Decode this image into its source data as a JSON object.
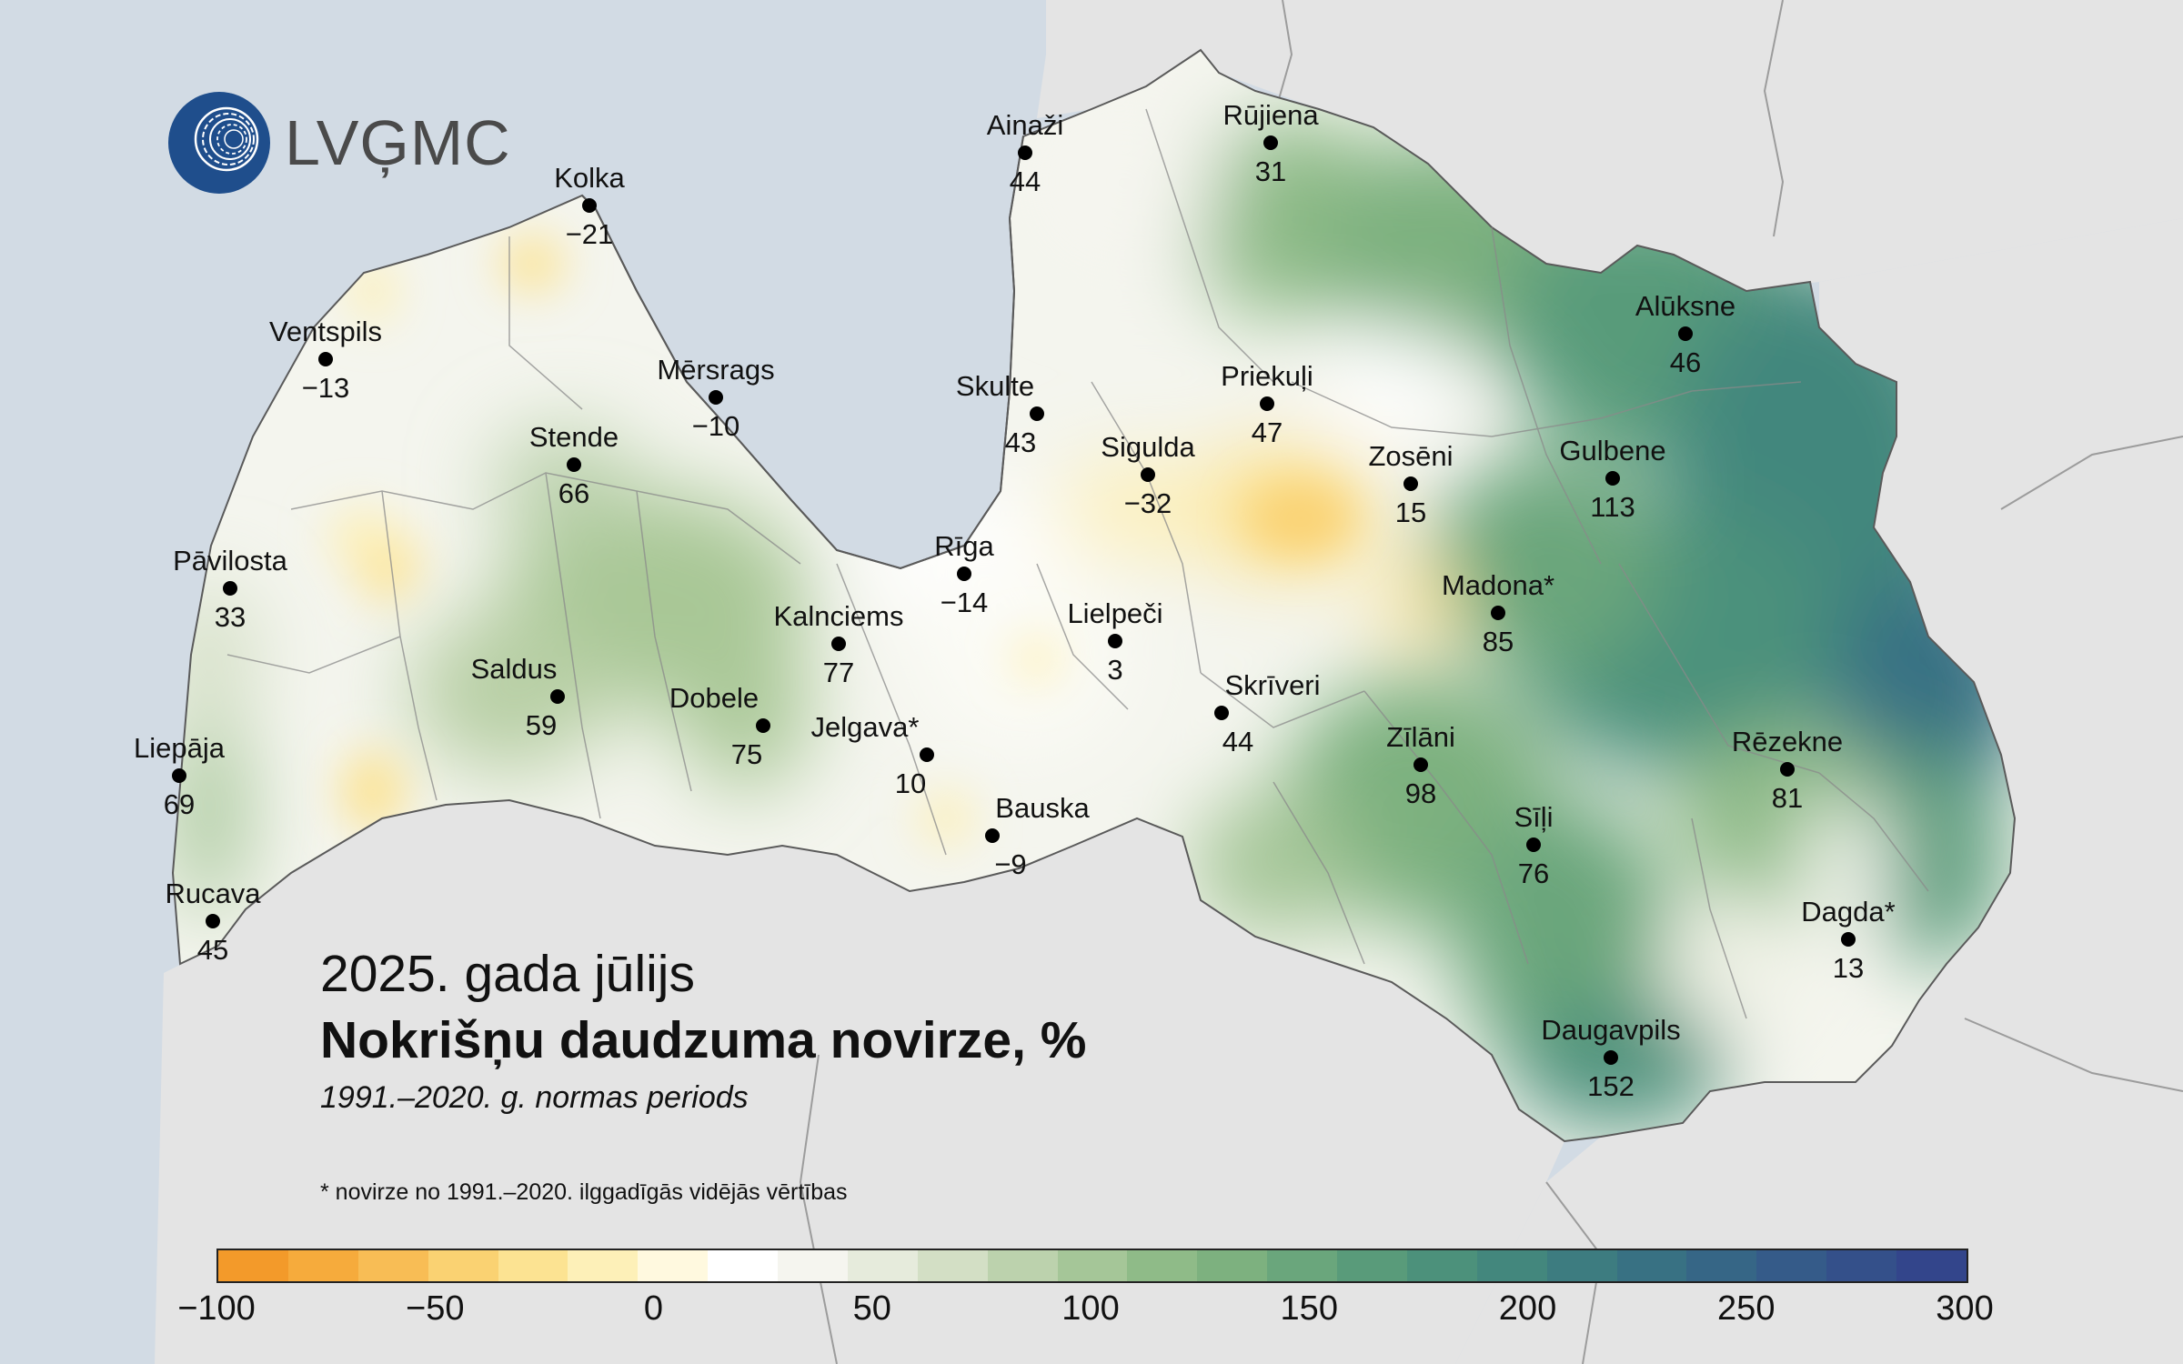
{
  "brand": {
    "logo_text": "LVĢMC"
  },
  "title": {
    "period": "2025. gada jūlijs",
    "main": "Nokrišņu daudzuma novirze, %",
    "norm": "1991.–2020. g. normas periods"
  },
  "footnote": "* novirze no 1991.–2020. ilggadīgās vidējās vērtības",
  "stations": [
    {
      "name": "Kolka",
      "value": "−21"
    },
    {
      "name": "Ventspils",
      "value": "−13"
    },
    {
      "name": "Mērsrags",
      "value": "−10"
    },
    {
      "name": "Ainaži",
      "value": "44"
    },
    {
      "name": "Rūjiena",
      "value": "31"
    },
    {
      "name": "Alūksne",
      "value": "46"
    },
    {
      "name": "Skulte",
      "value": "43"
    },
    {
      "name": "Priekuļi",
      "value": "47"
    },
    {
      "name": "Stende",
      "value": "66"
    },
    {
      "name": "Sigulda",
      "value": "−32"
    },
    {
      "name": "Zosēni",
      "value": "15"
    },
    {
      "name": "Gulbene",
      "value": "113"
    },
    {
      "name": "Pāvilosta",
      "value": "33"
    },
    {
      "name": "Rīga",
      "value": "−14"
    },
    {
      "name": "Madona*",
      "value": "85"
    },
    {
      "name": "Kalnciems",
      "value": "77"
    },
    {
      "name": "Lielpeči",
      "value": "3"
    },
    {
      "name": "Saldus",
      "value": "59"
    },
    {
      "name": "Skrīveri",
      "value": "44"
    },
    {
      "name": "Dobele",
      "value": "75"
    },
    {
      "name": "Jelgava*",
      "value": "10"
    },
    {
      "name": "Zīlāni",
      "value": "98"
    },
    {
      "name": "Rēzekne",
      "value": "81"
    },
    {
      "name": "Liepāja",
      "value": "69"
    },
    {
      "name": "Bauska",
      "value": "−9"
    },
    {
      "name": "Sīļi",
      "value": "76"
    },
    {
      "name": "Rucava",
      "value": "45"
    },
    {
      "name": "Dagda*",
      "value": "13"
    },
    {
      "name": "Daugavpils",
      "value": "152"
    }
  ],
  "legend": {
    "min": -100,
    "max": 300,
    "tick_labels": [
      "−100",
      "−50",
      "0",
      "50",
      "100",
      "150",
      "200",
      "250",
      "300"
    ],
    "colors": [
      "#f39a2a",
      "#f6ab3c",
      "#f8bd55",
      "#fad272",
      "#fce392",
      "#fdf0b8",
      "#fff9df",
      "#ffffff",
      "#f5f5ef",
      "#e6ebdc",
      "#d3dfc5",
      "#bcd2ad",
      "#a5c698",
      "#8fbb88",
      "#7db17f",
      "#6aa67c",
      "#599b7a",
      "#4c917b",
      "#43877d",
      "#3d7c80",
      "#387183",
      "#366686",
      "#355b89",
      "#34508a",
      "#33458b"
    ]
  },
  "colors": {
    "sea": "#d2dbe4",
    "neighbour_land": "#e3e3e3",
    "border": "#555555",
    "logo_blue": "#1f4e8c"
  }
}
